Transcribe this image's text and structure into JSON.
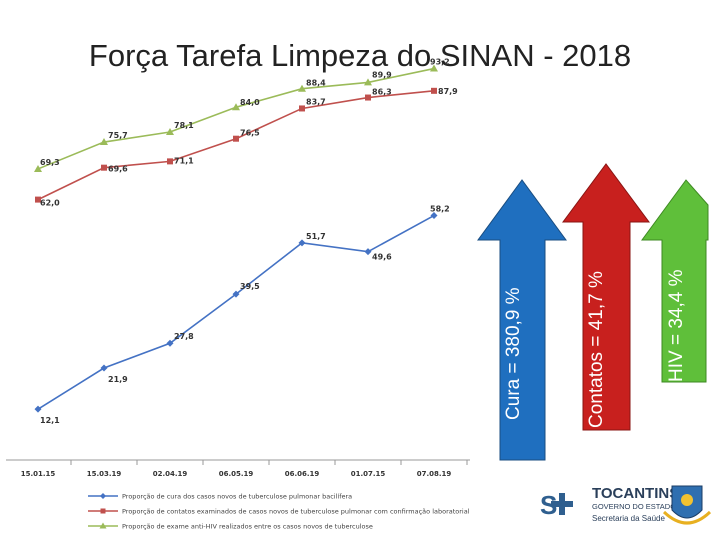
{
  "title": "Força Tarefa Limpeza do SINAN - 2018",
  "arrows": [
    {
      "label": "Cura = 380,9 %",
      "color": "#1f6fbf"
    },
    {
      "label": "Contatos = 41,7 %",
      "color": "#c8201e"
    },
    {
      "label": "HIV = 34,4 %",
      "color": "#5fbf3a"
    }
  ],
  "chart_data": {
    "type": "line",
    "title": "",
    "xlabel": "",
    "ylabel": "",
    "ylim": [
      0,
      100
    ],
    "categories": [
      "15.01.15",
      "15.03.19",
      "02.04.19",
      "06.05.19",
      "06.06.19",
      "01.07.15",
      "07.08.19"
    ],
    "series": [
      {
        "name": "Proporção de cura dos casos novos de tuberculose pulmonar bacilífera",
        "color": "#4472c4",
        "marker": "diamond",
        "values": [
          12.1,
          21.9,
          27.8,
          39.5,
          51.7,
          49.6,
          58.2
        ],
        "labels": [
          "12,1",
          "21,9",
          "27,8",
          "39,5",
          "51,7",
          "49,6",
          "58,2"
        ]
      },
      {
        "name": "Proporção de contatos examinados de casos novos de tuberculose pulmonar com confirmação laboratorial",
        "color": "#c0504d",
        "marker": "square",
        "values": [
          62.0,
          69.6,
          71.1,
          76.5,
          83.7,
          86.3,
          87.9
        ],
        "labels": [
          "62,0",
          "69,6",
          "71,1",
          "76,5",
          "83,7",
          "86,3",
          "87,9"
        ]
      },
      {
        "name": "Proporção de exame anti-HIV realizados entre os casos novos de tuberculose",
        "color": "#9bbb59",
        "marker": "triangle",
        "values": [
          69.3,
          75.7,
          78.1,
          84.0,
          88.4,
          89.9,
          93.2
        ],
        "labels": [
          "69,3",
          "75,7",
          "78,1",
          "84,0",
          "88,4",
          "89,9",
          "93,2"
        ]
      }
    ]
  },
  "logos": {
    "left_mark": "S",
    "brand_name": "TOCANTINS",
    "brand_sub1": "GOVERNO DO ESTADO",
    "brand_sub2": "Secretaria da Saúde"
  }
}
